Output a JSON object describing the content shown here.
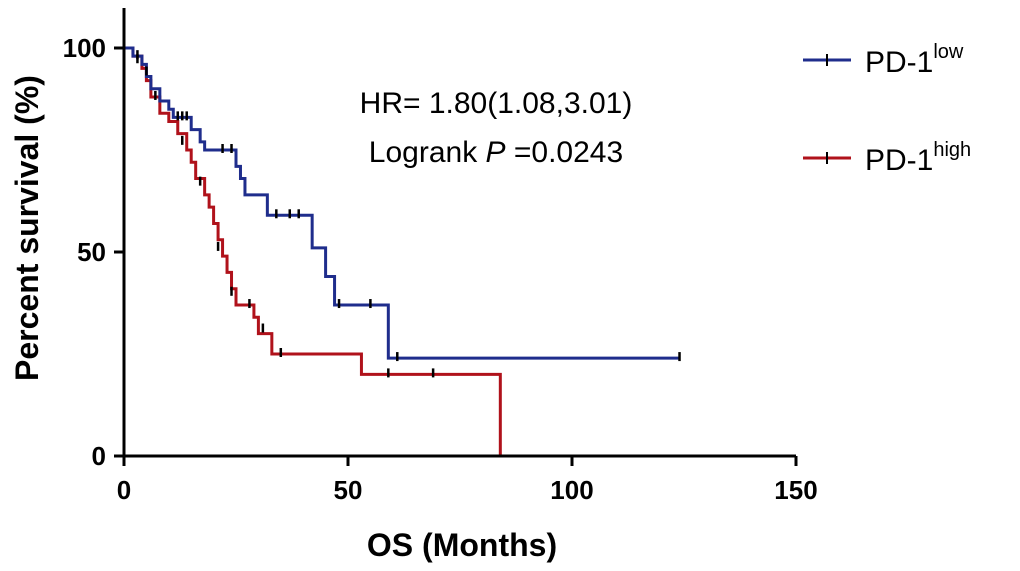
{
  "chart_data": {
    "type": "line",
    "subtype": "kaplan-meier",
    "xlabel": "OS (Months)",
    "ylabel": "Percent survival (%)",
    "xlim": [
      0,
      150
    ],
    "ylim": [
      0,
      100
    ],
    "xticks": [
      0,
      50,
      100,
      150
    ],
    "yticks": [
      0,
      50,
      100
    ],
    "grid": false,
    "legend_position": "right",
    "annotation": {
      "line1": "HR= 1.80(1.08,3.01)",
      "line2_prefix": "Logrank ",
      "line2_italic": "P",
      "line2_suffix": " =0.0243"
    },
    "series": [
      {
        "name": "PD-1",
        "name_sup": "low",
        "color": "#1f2d8c",
        "steps": [
          [
            0,
            100
          ],
          [
            2,
            98
          ],
          [
            4,
            96
          ],
          [
            5,
            93
          ],
          [
            6,
            90
          ],
          [
            8,
            87
          ],
          [
            10,
            85
          ],
          [
            11,
            83
          ],
          [
            15,
            80
          ],
          [
            17,
            77
          ],
          [
            18,
            75
          ],
          [
            25,
            71
          ],
          [
            26,
            68
          ],
          [
            27,
            64
          ],
          [
            32,
            59
          ],
          [
            42,
            51
          ],
          [
            45,
            44
          ],
          [
            47,
            37
          ],
          [
            59,
            24
          ],
          [
            124,
            24
          ]
        ],
        "censored": [
          [
            3,
            98
          ],
          [
            5,
            94
          ],
          [
            7,
            88
          ],
          [
            12,
            83
          ],
          [
            13,
            83
          ],
          [
            14,
            83
          ],
          [
            22,
            75
          ],
          [
            24,
            75
          ],
          [
            34,
            59
          ],
          [
            37,
            59
          ],
          [
            39,
            59
          ],
          [
            48,
            37
          ],
          [
            55,
            37
          ],
          [
            61,
            24
          ],
          [
            124,
            24
          ]
        ]
      },
      {
        "name": "PD-1",
        "name_sup": "high",
        "color": "#b0121b",
        "steps": [
          [
            0,
            100
          ],
          [
            2,
            98
          ],
          [
            4,
            95
          ],
          [
            5,
            92
          ],
          [
            6,
            88
          ],
          [
            8,
            84
          ],
          [
            10,
            82
          ],
          [
            12,
            79
          ],
          [
            14,
            75
          ],
          [
            15,
            72
          ],
          [
            16,
            68
          ],
          [
            18,
            64
          ],
          [
            19,
            61
          ],
          [
            20,
            57
          ],
          [
            21,
            53
          ],
          [
            22,
            49
          ],
          [
            23,
            45
          ],
          [
            24,
            41
          ],
          [
            25,
            37
          ],
          [
            29,
            34
          ],
          [
            30,
            30
          ],
          [
            33,
            25
          ],
          [
            53,
            20
          ],
          [
            84,
            0
          ]
        ],
        "censored": [
          [
            3,
            97
          ],
          [
            13,
            77
          ],
          [
            17,
            67
          ],
          [
            21,
            51
          ],
          [
            24,
            40
          ],
          [
            28,
            37
          ],
          [
            31,
            31
          ],
          [
            35,
            25
          ],
          [
            59,
            20
          ],
          [
            69,
            20
          ]
        ]
      }
    ]
  }
}
